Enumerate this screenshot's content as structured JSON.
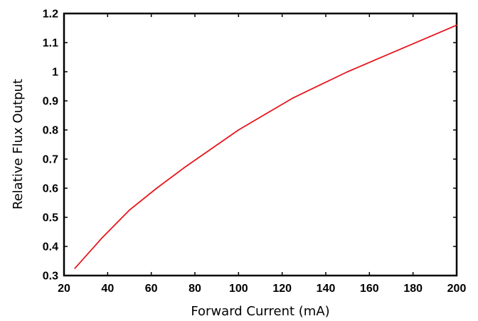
{
  "chart_data": {
    "type": "line",
    "title": "",
    "xlabel": "Forward Current (mA)",
    "ylabel": "Relative Flux Output",
    "xlim": [
      20,
      200
    ],
    "ylim": [
      0.3,
      1.2
    ],
    "xticks": [
      20,
      40,
      60,
      80,
      100,
      120,
      140,
      160,
      180,
      200
    ],
    "yticks": [
      0.3,
      0.4,
      0.5,
      0.6,
      0.7,
      0.8,
      0.9,
      1,
      1.1,
      1.2
    ],
    "xtick_labels": [
      "20",
      "40",
      "60",
      "80",
      "100",
      "120",
      "140",
      "160",
      "180",
      "200"
    ],
    "ytick_labels": [
      "0.3",
      "0.4",
      "0.5",
      "0.6",
      "0.7",
      "0.8",
      "0.9",
      "1",
      "1.1",
      "1.2"
    ],
    "grid": false,
    "legend": "none",
    "series": [
      {
        "color": "#e8141c",
        "x": [
          25,
          37.5,
          50,
          62.5,
          75,
          87.5,
          100,
          112.5,
          125,
          137.5,
          150,
          162.5,
          175,
          187.5,
          200
        ],
        "y": [
          0.325,
          0.43,
          0.525,
          0.6,
          0.67,
          0.735,
          0.8,
          0.855,
          0.91,
          0.955,
          1.0,
          1.04,
          1.08,
          1.12,
          1.16
        ]
      }
    ]
  }
}
